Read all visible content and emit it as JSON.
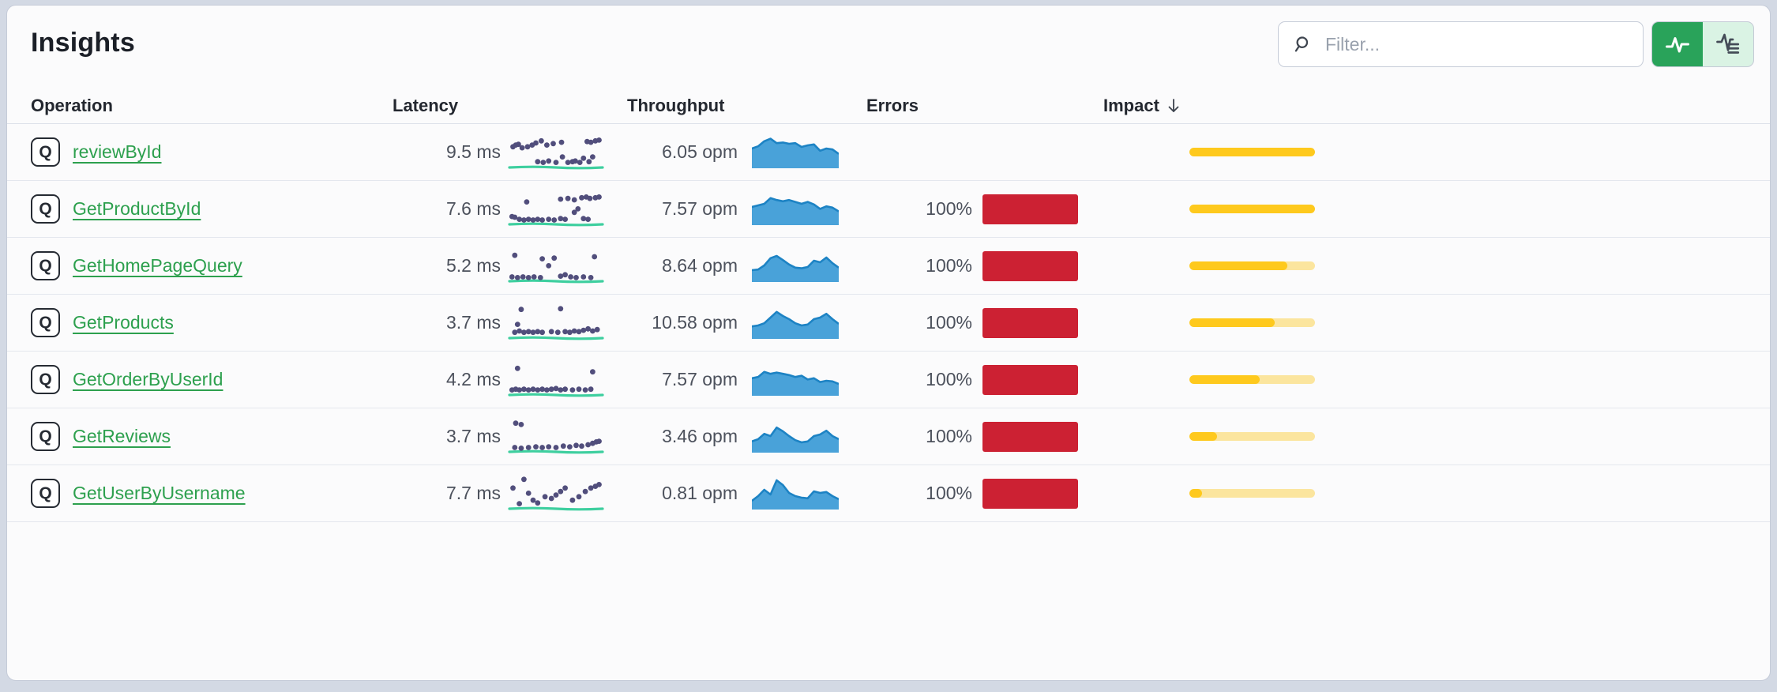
{
  "page": {
    "title": "Insights"
  },
  "filter": {
    "placeholder": "Filter..."
  },
  "toggle": {
    "options": [
      {
        "name": "line-view",
        "icon": "pulse-icon",
        "active": true
      },
      {
        "name": "list-view",
        "icon": "pulse-list-icon",
        "active": false
      }
    ]
  },
  "columns": [
    "Operation",
    "Latency",
    "Throughput",
    "Errors",
    "Impact"
  ],
  "sort": {
    "column": "Impact",
    "direction": "desc"
  },
  "colors": {
    "link_green": "#2da04e",
    "toggle_active_green": "#29a35a",
    "toggle_inactive_green": "#daf3e4",
    "error_red": "#cc2133",
    "impact_gold": "#fec91d",
    "impact_track": "#fbe59e",
    "scatter_dot_purple": "#514e7c",
    "scatter_baseline_teal": "#3ecf9f",
    "area_blue_fill": "#49a2d9",
    "area_blue_stroke": "#1d83c4"
  },
  "rows": [
    {
      "badge": "Q",
      "operation": "reviewById",
      "latency": "9.5 ms",
      "latency_ms": 9.5,
      "throughput": "6.05 opm",
      "throughput_opm": 6.05,
      "error_rate": null,
      "impact_pct": 100,
      "latency_dots": [
        [
          0.03,
          0.55
        ],
        [
          0.06,
          0.6
        ],
        [
          0.09,
          0.62
        ],
        [
          0.13,
          0.52
        ],
        [
          0.19,
          0.55
        ],
        [
          0.24,
          0.6
        ],
        [
          0.28,
          0.66
        ],
        [
          0.34,
          0.72
        ],
        [
          0.4,
          0.6
        ],
        [
          0.47,
          0.64
        ],
        [
          0.56,
          0.68
        ],
        [
          0.84,
          0.7
        ],
        [
          0.88,
          0.68
        ],
        [
          0.93,
          0.72
        ],
        [
          0.97,
          0.74
        ],
        [
          0.3,
          0.12
        ],
        [
          0.36,
          0.1
        ],
        [
          0.42,
          0.14
        ],
        [
          0.5,
          0.1
        ],
        [
          0.57,
          0.26
        ],
        [
          0.63,
          0.1
        ],
        [
          0.68,
          0.12
        ],
        [
          0.71,
          0.14
        ],
        [
          0.76,
          0.1
        ],
        [
          0.8,
          0.22
        ],
        [
          0.86,
          0.12
        ],
        [
          0.9,
          0.26
        ]
      ],
      "throughput_series": [
        0.55,
        0.62,
        0.78,
        0.86,
        0.72,
        0.74,
        0.7,
        0.72,
        0.6,
        0.65,
        0.68,
        0.48,
        0.55,
        0.52,
        0.38
      ]
    },
    {
      "badge": "Q",
      "operation": "GetProductById",
      "latency": "7.6 ms",
      "latency_ms": 7.6,
      "throughput": "7.57 opm",
      "throughput_opm": 7.57,
      "error_rate": "100%",
      "impact_pct": 100,
      "latency_dots": [
        [
          0.18,
          0.6
        ],
        [
          0.55,
          0.68
        ],
        [
          0.63,
          0.7
        ],
        [
          0.7,
          0.66
        ],
        [
          0.78,
          0.72
        ],
        [
          0.83,
          0.74
        ],
        [
          0.87,
          0.7
        ],
        [
          0.93,
          0.72
        ],
        [
          0.97,
          0.74
        ],
        [
          0.74,
          0.4
        ],
        [
          0.7,
          0.3
        ],
        [
          0.02,
          0.18
        ],
        [
          0.05,
          0.16
        ],
        [
          0.1,
          0.1
        ],
        [
          0.15,
          0.08
        ],
        [
          0.2,
          0.1
        ],
        [
          0.25,
          0.08
        ],
        [
          0.3,
          0.1
        ],
        [
          0.35,
          0.08
        ],
        [
          0.42,
          0.1
        ],
        [
          0.48,
          0.08
        ],
        [
          0.55,
          0.12
        ],
        [
          0.6,
          0.1
        ],
        [
          0.8,
          0.12
        ],
        [
          0.85,
          0.1
        ]
      ],
      "throughput_series": [
        0.5,
        0.55,
        0.6,
        0.78,
        0.72,
        0.68,
        0.72,
        0.66,
        0.6,
        0.66,
        0.58,
        0.44,
        0.52,
        0.48,
        0.36
      ]
    },
    {
      "badge": "Q",
      "operation": "GetHomePageQuery",
      "latency": "5.2 ms",
      "latency_ms": 5.2,
      "throughput": "8.64 opm",
      "throughput_opm": 8.64,
      "error_rate": "100%",
      "impact_pct": 78,
      "latency_dots": [
        [
          0.05,
          0.7
        ],
        [
          0.35,
          0.6
        ],
        [
          0.42,
          0.4
        ],
        [
          0.48,
          0.62
        ],
        [
          0.92,
          0.66
        ],
        [
          0.02,
          0.08
        ],
        [
          0.08,
          0.06
        ],
        [
          0.14,
          0.08
        ],
        [
          0.2,
          0.06
        ],
        [
          0.26,
          0.08
        ],
        [
          0.33,
          0.06
        ],
        [
          0.55,
          0.1
        ],
        [
          0.6,
          0.14
        ],
        [
          0.66,
          0.08
        ],
        [
          0.72,
          0.06
        ],
        [
          0.8,
          0.08
        ],
        [
          0.88,
          0.06
        ]
      ],
      "throughput_series": [
        0.3,
        0.32,
        0.45,
        0.68,
        0.75,
        0.62,
        0.48,
        0.38,
        0.36,
        0.4,
        0.6,
        0.55,
        0.7,
        0.52,
        0.38
      ]
    },
    {
      "badge": "Q",
      "operation": "GetProducts",
      "latency": "3.7 ms",
      "latency_ms": 3.7,
      "throughput": "10.58 opm",
      "throughput_opm": 10.58,
      "error_rate": "100%",
      "impact_pct": 68,
      "latency_dots": [
        [
          0.12,
          0.78
        ],
        [
          0.55,
          0.8
        ],
        [
          0.08,
          0.35
        ],
        [
          0.05,
          0.12
        ],
        [
          0.1,
          0.16
        ],
        [
          0.15,
          0.12
        ],
        [
          0.2,
          0.14
        ],
        [
          0.25,
          0.12
        ],
        [
          0.3,
          0.14
        ],
        [
          0.35,
          0.12
        ],
        [
          0.45,
          0.14
        ],
        [
          0.52,
          0.12
        ],
        [
          0.6,
          0.14
        ],
        [
          0.65,
          0.12
        ],
        [
          0.7,
          0.16
        ],
        [
          0.75,
          0.14
        ],
        [
          0.8,
          0.18
        ],
        [
          0.85,
          0.22
        ],
        [
          0.9,
          0.16
        ],
        [
          0.95,
          0.2
        ]
      ],
      "throughput_series": [
        0.32,
        0.35,
        0.42,
        0.6,
        0.78,
        0.65,
        0.55,
        0.42,
        0.35,
        0.38,
        0.55,
        0.6,
        0.72,
        0.55,
        0.4
      ]
    },
    {
      "badge": "Q",
      "operation": "GetOrderByUserId",
      "latency": "4.2 ms",
      "latency_ms": 4.2,
      "throughput": "7.57 opm",
      "throughput_opm": 7.57,
      "error_rate": "100%",
      "impact_pct": 56,
      "latency_dots": [
        [
          0.08,
          0.72
        ],
        [
          0.9,
          0.62
        ],
        [
          0.02,
          0.1
        ],
        [
          0.06,
          0.12
        ],
        [
          0.1,
          0.1
        ],
        [
          0.15,
          0.12
        ],
        [
          0.2,
          0.1
        ],
        [
          0.25,
          0.12
        ],
        [
          0.3,
          0.1
        ],
        [
          0.35,
          0.12
        ],
        [
          0.4,
          0.1
        ],
        [
          0.45,
          0.12
        ],
        [
          0.5,
          0.14
        ],
        [
          0.55,
          0.1
        ],
        [
          0.6,
          0.12
        ],
        [
          0.68,
          0.1
        ],
        [
          0.75,
          0.12
        ],
        [
          0.82,
          0.1
        ],
        [
          0.88,
          0.12
        ]
      ],
      "throughput_series": [
        0.48,
        0.52,
        0.68,
        0.62,
        0.66,
        0.62,
        0.58,
        0.52,
        0.56,
        0.44,
        0.48,
        0.36,
        0.4,
        0.38,
        0.3
      ]
    },
    {
      "badge": "Q",
      "operation": "GetReviews",
      "latency": "3.7 ms",
      "latency_ms": 3.7,
      "throughput": "3.46 opm",
      "throughput_opm": 3.46,
      "error_rate": "100%",
      "impact_pct": 22,
      "latency_dots": [
        [
          0.06,
          0.78
        ],
        [
          0.12,
          0.74
        ],
        [
          0.05,
          0.08
        ],
        [
          0.12,
          0.06
        ],
        [
          0.2,
          0.08
        ],
        [
          0.28,
          0.1
        ],
        [
          0.35,
          0.08
        ],
        [
          0.42,
          0.1
        ],
        [
          0.5,
          0.08
        ],
        [
          0.58,
          0.12
        ],
        [
          0.65,
          0.1
        ],
        [
          0.72,
          0.14
        ],
        [
          0.78,
          0.12
        ],
        [
          0.85,
          0.16
        ],
        [
          0.9,
          0.2
        ],
        [
          0.94,
          0.24
        ],
        [
          0.97,
          0.26
        ]
      ],
      "throughput_series": [
        0.28,
        0.35,
        0.52,
        0.45,
        0.72,
        0.6,
        0.45,
        0.32,
        0.25,
        0.28,
        0.45,
        0.5,
        0.62,
        0.45,
        0.35
      ]
    },
    {
      "badge": "Q",
      "operation": "GetUserByUsername",
      "latency": "7.7 ms",
      "latency_ms": 7.7,
      "throughput": "0.81 opm",
      "throughput_opm": 0.81,
      "error_rate": "100%",
      "impact_pct": 10,
      "latency_dots": [
        [
          0.03,
          0.55
        ],
        [
          0.15,
          0.8
        ],
        [
          0.25,
          0.2
        ],
        [
          0.3,
          0.12
        ],
        [
          0.38,
          0.3
        ],
        [
          0.45,
          0.25
        ],
        [
          0.5,
          0.35
        ],
        [
          0.55,
          0.45
        ],
        [
          0.6,
          0.55
        ],
        [
          0.68,
          0.2
        ],
        [
          0.75,
          0.3
        ],
        [
          0.82,
          0.45
        ],
        [
          0.88,
          0.55
        ],
        [
          0.93,
          0.6
        ],
        [
          0.97,
          0.65
        ],
        [
          0.2,
          0.4
        ],
        [
          0.1,
          0.1
        ]
      ],
      "throughput_series": [
        0.2,
        0.35,
        0.55,
        0.4,
        0.85,
        0.7,
        0.45,
        0.35,
        0.3,
        0.28,
        0.5,
        0.45,
        0.48,
        0.35,
        0.25
      ]
    }
  ]
}
